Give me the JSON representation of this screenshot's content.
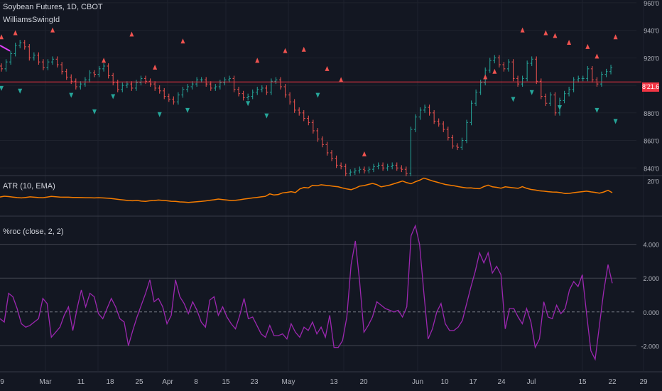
{
  "header": {
    "title": "Soybean Futures, 1D, CBOT",
    "indicator": "WilliamsSwingId",
    "atr_label": "ATR (10, EMA)",
    "roc_label": "%roc (close, 2, 2)",
    "price_tag": "8'21.6"
  },
  "colors": {
    "background": "#131722",
    "grid": "#1e222d",
    "up_bar": "#26a69a",
    "down_bar": "#ef5350",
    "swing_high": "#ef5350",
    "swing_low": "#26a69a",
    "atr_line": "#f57c00",
    "roc_line": "#9c27b0",
    "price_line": "#f23645",
    "magenta_segment": "#e040fb"
  },
  "x_axis_labels": [
    "9",
    "Mar",
    "11",
    "18",
    "25",
    "Apr",
    "8",
    "15",
    "23",
    "May",
    "13",
    "20",
    "Jun",
    "10",
    "17",
    "24",
    "Jul",
    "15",
    "22",
    "29"
  ],
  "chart_data": [
    {
      "type": "bar",
      "panel": "price",
      "y_axis_labels": [
        "960'0",
        "940'0",
        "920'0",
        "900'0",
        "880'0",
        "860'0",
        "840'0"
      ],
      "ylim": [
        836,
        962
      ],
      "price_line": 902.5,
      "closes": [
        912,
        917,
        923,
        929,
        931,
        928,
        920,
        922,
        917,
        913,
        917,
        919,
        915,
        910,
        906,
        903,
        899,
        901,
        904,
        909,
        908,
        912,
        914,
        907,
        902,
        897,
        900,
        901,
        898,
        902,
        905,
        903,
        901,
        898,
        896,
        892,
        890,
        888,
        893,
        897,
        899,
        901,
        904,
        904,
        901,
        898,
        899,
        902,
        904,
        905,
        897,
        894,
        891,
        892,
        895,
        897,
        898,
        895,
        903,
        904,
        899,
        893,
        888,
        882,
        880,
        876,
        873,
        867,
        861,
        857,
        851,
        847,
        842,
        841,
        836,
        837,
        838,
        839,
        838,
        839,
        841,
        842,
        840,
        841,
        842,
        840,
        839,
        836,
        868,
        877,
        882,
        884,
        880,
        874,
        872,
        868,
        862,
        856,
        855,
        860,
        873,
        887,
        895,
        902,
        911,
        918,
        920,
        915,
        912,
        917,
        905,
        901,
        905,
        916,
        919,
        903,
        892,
        887,
        893,
        880,
        889,
        894,
        897,
        904,
        905,
        905,
        912,
        904,
        901,
        908,
        910,
        913
      ],
      "swing_highs": [
        [
          0,
          935
        ],
        [
          3,
          938
        ],
        [
          11,
          940
        ],
        [
          22,
          918
        ],
        [
          28,
          937
        ],
        [
          33,
          913
        ],
        [
          39,
          932
        ],
        [
          55,
          918
        ],
        [
          61,
          925
        ],
        [
          65,
          926
        ],
        [
          70,
          912
        ],
        [
          73,
          904
        ],
        [
          78,
          850
        ],
        [
          104,
          906
        ],
        [
          106,
          910
        ],
        [
          112,
          940
        ],
        [
          117,
          938
        ],
        [
          119,
          936
        ],
        [
          122,
          931
        ],
        [
          126,
          928
        ],
        [
          128,
          921
        ],
        [
          132,
          935
        ]
      ],
      "swing_lows": [
        [
          0,
          898
        ],
        [
          4,
          896
        ],
        [
          15,
          893
        ],
        [
          20,
          881
        ],
        [
          24,
          892
        ],
        [
          34,
          879
        ],
        [
          40,
          882
        ],
        [
          53,
          887
        ],
        [
          57,
          878
        ],
        [
          68,
          893
        ],
        [
          110,
          890
        ],
        [
          114,
          895
        ],
        [
          120,
          884
        ],
        [
          128,
          882
        ],
        [
          132,
          874
        ]
      ],
      "magenta_start": [
        929,
        925
      ]
    },
    {
      "type": "line",
      "panel": "atr",
      "title": "ATR (10, EMA)",
      "y_axis_labels": [
        "20'0"
      ],
      "ylim": [
        0,
        22
      ],
      "values": [
        10.5,
        11.0,
        10.8,
        10.5,
        10.2,
        10.0,
        10.3,
        10.6,
        10.4,
        10.2,
        10.1,
        10.5,
        10.9,
        10.7,
        10.5,
        10.4,
        10.4,
        10.3,
        10.3,
        10.2,
        10.1,
        10.1,
        10.0,
        10.1,
        10.0,
        9.8,
        9.6,
        9.3,
        9.0,
        8.7,
        8.4,
        8.3,
        8.5,
        8.1,
        7.9,
        8.3,
        8.4,
        8.7,
        8.5,
        8.3,
        8.0,
        7.9,
        7.6,
        7.5,
        7.3,
        7.5,
        7.7,
        7.9,
        8.2,
        8.6,
        8.9,
        9.3,
        9.0,
        8.7,
        8.4,
        8.6,
        8.9,
        9.3,
        9.6,
        10.0,
        10.3,
        10.6,
        10.9,
        12.4,
        11.7,
        12.0,
        13.0,
        13.3,
        13.7,
        13.2,
        15.3,
        16.2,
        15.9,
        17.5,
        17.2,
        17.8,
        17.5,
        17.2,
        16.9,
        16.6,
        15.9,
        15.3,
        14.9,
        15.8,
        17.0,
        17.3,
        18.0,
        18.6,
        17.9,
        16.6,
        17.1,
        17.6,
        18.4,
        19.2,
        20.0,
        19.1,
        18.4,
        19.6,
        20.5,
        21.8,
        21.0,
        20.1,
        19.4,
        18.7,
        18.0,
        17.6,
        17.2,
        16.7,
        16.3,
        15.9,
        16.0,
        15.6,
        15.5,
        16.7,
        17.6,
        16.6,
        16.3,
        15.8,
        16.6,
        16.3,
        16.0,
        15.7,
        16.7,
        15.7,
        15.0,
        14.7,
        14.2,
        14.0,
        13.7,
        13.5,
        13.4,
        13.1,
        12.6,
        12.7,
        13.1,
        13.4,
        13.7,
        14.0,
        13.6,
        13.3,
        12.8,
        13.5,
        14.5,
        13.1
      ]
    },
    {
      "type": "line",
      "panel": "roc",
      "title": "%roc (close, 2, 2)",
      "y_axis_labels": [
        "4.000",
        "2.000",
        "0.000",
        "-2.000"
      ],
      "ylim": [
        -3.5,
        5.5
      ],
      "zero_line": 0,
      "values": [
        -0.4,
        -0.6,
        1.1,
        0.9,
        0.2,
        -0.7,
        -0.9,
        -0.8,
        -0.6,
        -0.4,
        0.8,
        0.5,
        -1.5,
        -1.2,
        -0.9,
        -0.2,
        0.3,
        -1.1,
        0.2,
        1.3,
        0.3,
        1.1,
        0.9,
        -0.1,
        -0.4,
        0.2,
        0.8,
        0.3,
        -0.4,
        -0.6,
        -2.0,
        -1.1,
        -0.3,
        0.4,
        1.1,
        1.9,
        0.6,
        0.8,
        0.3,
        -0.7,
        -0.2,
        1.9,
        0.9,
        0.5,
        -0.1,
        0.6,
        0.1,
        -0.6,
        -0.9,
        0.7,
        0.9,
        -0.2,
        0.3,
        -0.3,
        -0.7,
        -1.0,
        -0.2,
        0.8,
        -0.4,
        -0.3,
        -0.8,
        -1.3,
        -1.5,
        -0.8,
        -1.4,
        -1.4,
        -1.3,
        -1.6,
        -0.7,
        -1.2,
        -1.5,
        -0.9,
        -1.1,
        -0.6,
        -1.3,
        -0.9,
        -1.5,
        -0.2,
        -2.1,
        -2.1,
        -1.7,
        -0.3,
        2.8,
        4.2,
        1.8,
        -1.2,
        -0.8,
        -0.3,
        0.6,
        0.4,
        0.2,
        0.1,
        0.0,
        0.1,
        -0.3,
        0.3,
        4.5,
        5.1,
        4.0,
        1.1,
        -1.6,
        -1.0,
        0.0,
        0.5,
        -0.7,
        -1.1,
        -1.1,
        -0.9,
        -0.5,
        0.5,
        1.5,
        2.4,
        3.5,
        2.9,
        3.5,
        2.3,
        2.7,
        2.2,
        -1.0,
        0.2,
        0.2,
        -0.3,
        -0.7,
        0.2,
        -0.6,
        -2.1,
        -1.6,
        0.6,
        -0.3,
        -0.4,
        0.4,
        -0.1,
        0.2,
        1.3,
        1.8,
        1.5,
        2.2,
        -0.1,
        -2.3,
        -2.8,
        -0.8,
        1.2,
        2.8,
        1.7
      ]
    }
  ]
}
